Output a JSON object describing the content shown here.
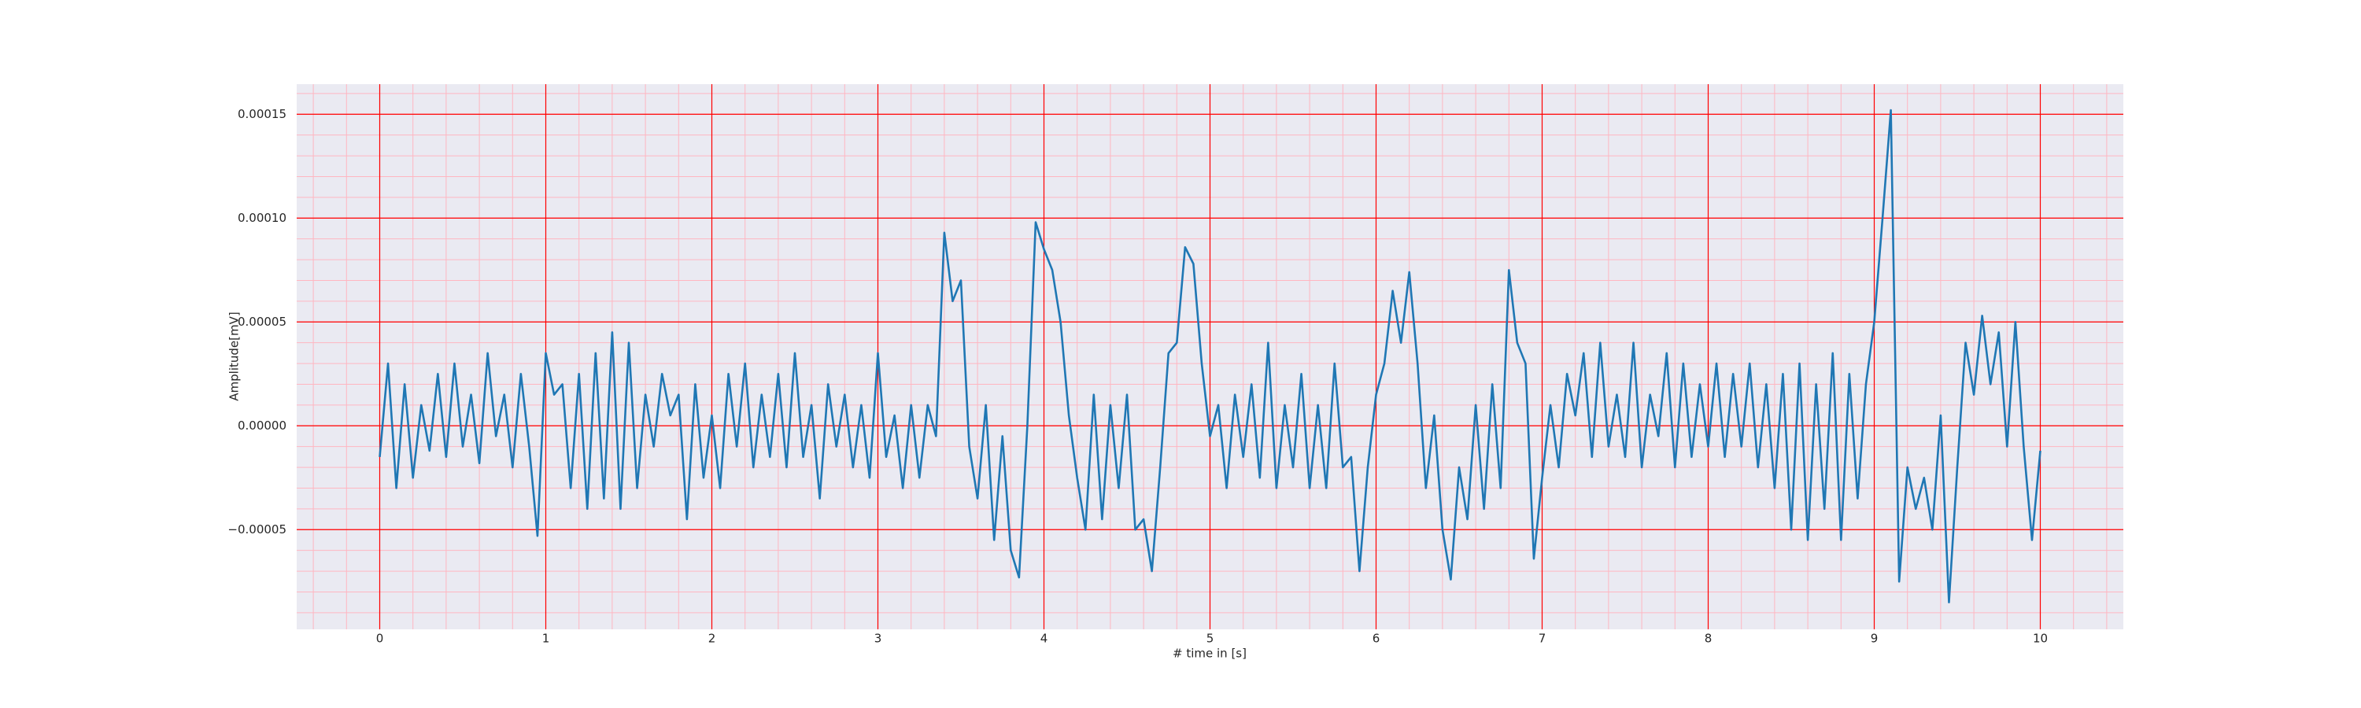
{
  "chart_data": {
    "type": "line",
    "xlabel": "# time in [s]",
    "ylabel": "Amplitude[mV]",
    "color": "#1f77b4",
    "background": "#eaeaf2",
    "grid": true,
    "grid_color": "#ff0000",
    "minor_grid": true,
    "minor_grid_color": "#ffb6c1",
    "xminor_step": 0.2,
    "yminor_step": 1e-05,
    "xlim": [
      -0.5,
      10.5
    ],
    "xticks": [
      0,
      1,
      2,
      3,
      4,
      5,
      6,
      7,
      8,
      9,
      10
    ],
    "ylim": [
      -9.8e-05,
      0.0001645
    ],
    "yticks": [
      {
        "value": -5e-05,
        "label": "−0.00005"
      },
      {
        "value": 0,
        "label": "0.00000"
      },
      {
        "value": 5e-05,
        "label": "0.00005"
      },
      {
        "value": 0.0001,
        "label": "0.00010"
      },
      {
        "value": 0.00015,
        "label": "0.00015"
      }
    ],
    "x": [
      0,
      0.05,
      0.1,
      0.15,
      0.2,
      0.25,
      0.3,
      0.35,
      0.4,
      0.45,
      0.5,
      0.55,
      0.6,
      0.65,
      0.7,
      0.75,
      0.8,
      0.85,
      0.9,
      0.95,
      1,
      1.05,
      1.1,
      1.15,
      1.2,
      1.25,
      1.3,
      1.35,
      1.4,
      1.45,
      1.5,
      1.55,
      1.6,
      1.65,
      1.7,
      1.75,
      1.8,
      1.85,
      1.9,
      1.95,
      2,
      2.05,
      2.1,
      2.15,
      2.2,
      2.25,
      2.3,
      2.35,
      2.4,
      2.45,
      2.5,
      2.55,
      2.6,
      2.65,
      2.7,
      2.75,
      2.8,
      2.85,
      2.9,
      2.95,
      3,
      3.05,
      3.1,
      3.15,
      3.2,
      3.25,
      3.3,
      3.35,
      3.4,
      3.45,
      3.5,
      3.55,
      3.6,
      3.65,
      3.7,
      3.75,
      3.8,
      3.85,
      3.9,
      3.95,
      4,
      4.05,
      4.1,
      4.15,
      4.2,
      4.25,
      4.3,
      4.35,
      4.4,
      4.45,
      4.5,
      4.55,
      4.6,
      4.65,
      4.7,
      4.75,
      4.8,
      4.85,
      4.9,
      4.95,
      5,
      5.05,
      5.1,
      5.15,
      5.2,
      5.25,
      5.3,
      5.35,
      5.4,
      5.45,
      5.5,
      5.55,
      5.6,
      5.65,
      5.7,
      5.75,
      5.8,
      5.85,
      5.9,
      5.95,
      6,
      6.05,
      6.1,
      6.15,
      6.2,
      6.25,
      6.3,
      6.35,
      6.4,
      6.45,
      6.5,
      6.55,
      6.6,
      6.65,
      6.7,
      6.75,
      6.8,
      6.85,
      6.9,
      6.95,
      7,
      7.05,
      7.1,
      7.15,
      7.2,
      7.25,
      7.3,
      7.35,
      7.4,
      7.45,
      7.5,
      7.55,
      7.6,
      7.65,
      7.7,
      7.75,
      7.8,
      7.85,
      7.9,
      7.95,
      8,
      8.05,
      8.1,
      8.15,
      8.2,
      8.25,
      8.3,
      8.35,
      8.4,
      8.45,
      8.5,
      8.55,
      8.6,
      8.65,
      8.7,
      8.75,
      8.8,
      8.85,
      8.9,
      8.95,
      9,
      9.05,
      9.1,
      9.15,
      9.2,
      9.25,
      9.3,
      9.35,
      9.4,
      9.45,
      9.5,
      9.55,
      9.6,
      9.65,
      9.7,
      9.75,
      9.8,
      9.85,
      9.9,
      9.95,
      10
    ],
    "values": [
      -1.5e-05,
      3e-05,
      -3e-05,
      2e-05,
      -2.5e-05,
      1e-05,
      -1.2e-05,
      2.5e-05,
      -1.5e-05,
      3e-05,
      -1e-05,
      1.5e-05,
      -1.8e-05,
      3.5e-05,
      -5e-06,
      1.5e-05,
      -2e-05,
      2.5e-05,
      -1e-05,
      -5.3e-05,
      3.5e-05,
      1.5e-05,
      2e-05,
      -3e-05,
      2.5e-05,
      -4e-05,
      3.5e-05,
      -3.5e-05,
      4.5e-05,
      -4e-05,
      4e-05,
      -3e-05,
      1.5e-05,
      -1e-05,
      2.5e-05,
      5e-06,
      1.5e-05,
      -4.5e-05,
      2e-05,
      -2.5e-05,
      5e-06,
      -3e-05,
      2.5e-05,
      -1e-05,
      3e-05,
      -2e-05,
      1.5e-05,
      -1.5e-05,
      2.5e-05,
      -2e-05,
      3.5e-05,
      -1.5e-05,
      1e-05,
      -3.5e-05,
      2e-05,
      -1e-05,
      1.5e-05,
      -2e-05,
      1e-05,
      -2.5e-05,
      3.5e-05,
      -1.5e-05,
      5e-06,
      -3e-05,
      1e-05,
      -2.5e-05,
      1e-05,
      -5e-06,
      9.3e-05,
      6e-05,
      7e-05,
      -1e-05,
      -3.5e-05,
      1e-05,
      -5.5e-05,
      -5e-06,
      -6e-05,
      -7.3e-05,
      0,
      9.8e-05,
      8.5e-05,
      7.5e-05,
      5e-05,
      5e-06,
      -2.5e-05,
      -5e-05,
      1.5e-05,
      -4.5e-05,
      1e-05,
      -3e-05,
      1.5e-05,
      -5e-05,
      -4.5e-05,
      -7e-05,
      -2e-05,
      3.5e-05,
      4e-05,
      8.6e-05,
      7.8e-05,
      3e-05,
      -5e-06,
      1e-05,
      -3e-05,
      1.5e-05,
      -1.5e-05,
      2e-05,
      -2.5e-05,
      4e-05,
      -3e-05,
      1e-05,
      -2e-05,
      2.5e-05,
      -3e-05,
      1e-05,
      -3e-05,
      3e-05,
      -2e-05,
      -1.5e-05,
      -7e-05,
      -2e-05,
      1.5e-05,
      3e-05,
      6.5e-05,
      4e-05,
      7.4e-05,
      3e-05,
      -3e-05,
      5e-06,
      -5e-05,
      -7.4e-05,
      -2e-05,
      -4.5e-05,
      1e-05,
      -4e-05,
      2e-05,
      -3e-05,
      7.5e-05,
      4e-05,
      3e-05,
      -6.4e-05,
      -2.5e-05,
      1e-05,
      -2e-05,
      2.5e-05,
      5e-06,
      3.5e-05,
      -1.5e-05,
      4e-05,
      -1e-05,
      1.5e-05,
      -1.5e-05,
      4e-05,
      -2e-05,
      1.5e-05,
      -5e-06,
      3.5e-05,
      -2e-05,
      3e-05,
      -1.5e-05,
      2e-05,
      -1e-05,
      3e-05,
      -1.5e-05,
      2.5e-05,
      -1e-05,
      3e-05,
      -2e-05,
      2e-05,
      -3e-05,
      2.5e-05,
      -5e-05,
      3e-05,
      -5.5e-05,
      2e-05,
      -4e-05,
      3.5e-05,
      -5.5e-05,
      2.5e-05,
      -3.5e-05,
      2e-05,
      5e-05,
      0.0001,
      0.000152,
      -7.5e-05,
      -2e-05,
      -4e-05,
      -2.5e-05,
      -5e-05,
      5e-06,
      -8.5e-05,
      -2e-05,
      4e-05,
      1.5e-05,
      5.3e-05,
      2e-05,
      4.5e-05,
      -1e-05,
      5e-05,
      -1e-05,
      -5.5e-05,
      -1.2e-05
    ]
  }
}
